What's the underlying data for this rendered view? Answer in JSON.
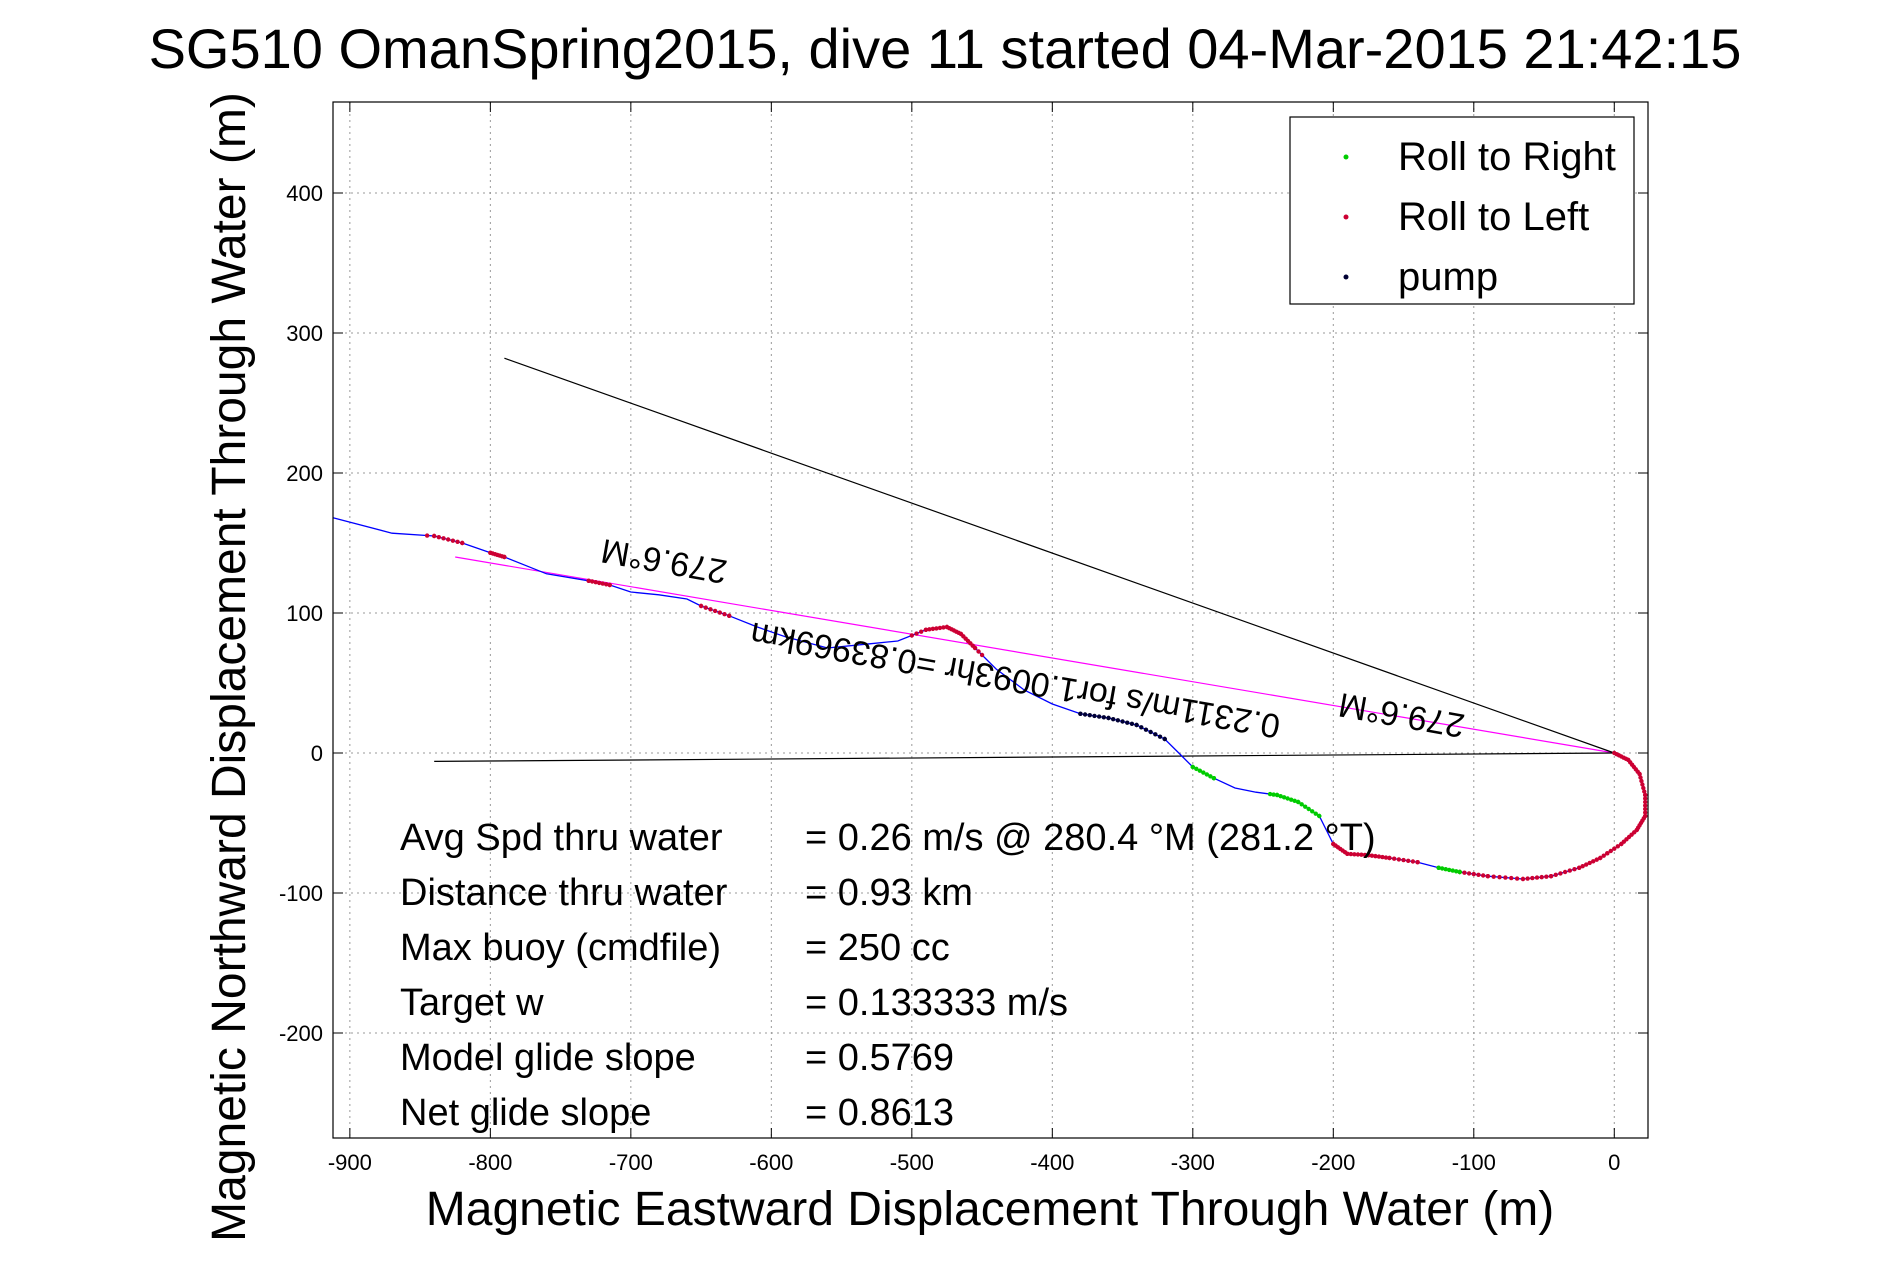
{
  "chart_data": {
    "type": "line",
    "title": "SG510 OmanSpring2015, dive 11 started 04-Mar-2015 21:42:15",
    "xlabel": "Magnetic Eastward Displacement Through Water (m)",
    "ylabel": "Magnetic Northward Displacement Through Water (m)",
    "xlim": [
      -912,
      24
    ],
    "ylim": [
      -275,
      465
    ],
    "xticks": [
      -900,
      -800,
      -700,
      -600,
      -500,
      -400,
      -300,
      -200,
      -100,
      0
    ],
    "yticks": [
      -200,
      -100,
      0,
      100,
      200,
      300,
      400
    ],
    "grid": true,
    "legend_position": "top-right",
    "legend": [
      {
        "label": "Roll to Right",
        "color": "#00cc00"
      },
      {
        "label": "Roll to Left",
        "color": "#cc0033"
      },
      {
        "label": "pump",
        "color": "#000033"
      }
    ],
    "series": [
      {
        "name": "track",
        "color": "#0000ff",
        "x": [
          0,
          10,
          18,
          22,
          22,
          16,
          5,
          -10,
          -25,
          -45,
          -65,
          -90,
          -110,
          -125,
          -140,
          -160,
          -175,
          -190,
          -200,
          -205,
          -210,
          -225,
          -240,
          -255,
          -270,
          -285,
          -300,
          -310,
          -320,
          -340,
          -360,
          -380,
          -400,
          -420,
          -440,
          -455,
          -465,
          -475,
          -490,
          -510,
          -530,
          -560,
          -590,
          -610,
          -630,
          -650,
          -660,
          -680,
          -700,
          -715,
          -730,
          -760,
          -790,
          -800,
          -820,
          -840,
          -870,
          -912
        ],
        "y": [
          0,
          -5,
          -15,
          -30,
          -45,
          -55,
          -65,
          -75,
          -82,
          -88,
          -90,
          -88,
          -85,
          -82,
          -78,
          -75,
          -73,
          -72,
          -65,
          -55,
          -45,
          -35,
          -30,
          -28,
          -25,
          -18,
          -10,
          0,
          10,
          20,
          25,
          28,
          35,
          45,
          60,
          75,
          85,
          90,
          88,
          80,
          78,
          75,
          83,
          90,
          98,
          105,
          110,
          113,
          115,
          120,
          123,
          128,
          140,
          143,
          150,
          155,
          157,
          168
        ]
      },
      {
        "name": "heading-line",
        "color": "#ff00ff",
        "x": [
          0,
          -825
        ],
        "y": [
          0,
          140
        ]
      },
      {
        "name": "reference-line-upper",
        "color": "#000000",
        "x": [
          0,
          -790
        ],
        "y": [
          0,
          282
        ]
      },
      {
        "name": "reference-line-lower",
        "color": "#000000",
        "x": [
          0,
          -840
        ],
        "y": [
          0,
          -6
        ]
      }
    ],
    "annotations": [
      {
        "text": "279.6°M",
        "x": -675,
        "y": 145,
        "rotation": 190
      },
      {
        "text": "0.2311m/s for1.0093hr =0.83969km",
        "x": -425,
        "y": 60,
        "rotation": 190
      },
      {
        "text": "279.6°M",
        "x": -150,
        "y": 35,
        "rotation": 190
      }
    ],
    "stats": [
      {
        "label": "Avg Spd thru water",
        "value": "=  0.26 m/s @ 280.4 °M (281.2 °T)"
      },
      {
        "label": "Distance thru water",
        "value": "=  0.93 km"
      },
      {
        "label": "Max buoy (cmdfile)",
        "value": "= 250 cc"
      },
      {
        "label": "Target w",
        "value": "= 0.133333 m/s"
      },
      {
        "label": "Model glide slope",
        "value": "= 0.5769"
      },
      {
        "label": "Net glide slope",
        "value": "= 0.8613"
      }
    ]
  }
}
